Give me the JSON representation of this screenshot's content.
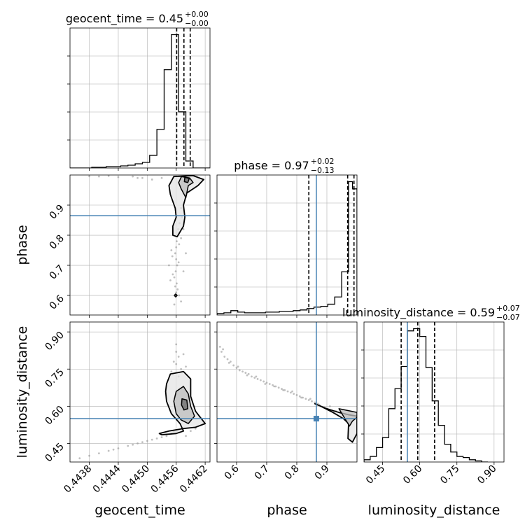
{
  "chart_data": {
    "type": "corner",
    "parameters": [
      "geocent_time",
      "phase",
      "luminosity_distance"
    ],
    "axis_labels": {
      "x": [
        "geocent_time",
        "phase",
        "luminosity_distance"
      ],
      "y": [
        "phase",
        "luminosity_distance"
      ]
    },
    "truths": {
      "phase": 0.865,
      "luminosity_distance": 0.55
    },
    "colors": {
      "truth": "#4682b4",
      "hist": "#000000",
      "points": "#8c8c8c",
      "grid": "#b0b0b0"
    },
    "diagonals": [
      {
        "param": "geocent_time",
        "title": {
          "prefix": "geocent_time = 0.45",
          "sup": "+0.00",
          "sub": "−0.00"
        },
        "xlim": [
          0.4434,
          0.4463
        ],
        "ticks": [
          0.4438,
          0.4444,
          0.445,
          0.4456,
          0.4462
        ],
        "tick_labels": [
          "0.4438",
          "0.4444",
          "0.4450",
          "0.4456",
          "0.4462"
        ],
        "bin_edges": [
          0.4434,
          0.44355,
          0.4437,
          0.44385,
          0.444,
          0.44415,
          0.4443,
          0.44445,
          0.4446,
          0.44475,
          0.4449,
          0.44505,
          0.4452,
          0.44535,
          0.4455,
          0.44565,
          0.4458,
          0.44595,
          0.4461,
          0.44625,
          0.4463
        ],
        "counts": [
          0,
          0,
          0,
          1,
          1,
          2,
          2,
          3,
          4,
          6,
          8,
          18,
          55,
          140,
          190,
          80,
          10,
          0,
          0,
          0
        ],
        "quantiles": [
          0.44561,
          0.44576,
          0.44589
        ]
      },
      {
        "param": "phase",
        "title": {
          "prefix": "phase = 0.97",
          "sup": "+0.02",
          "sub": "−0.13"
        },
        "xlim": [
          0.535,
          1.0
        ],
        "ticks": [
          0.6,
          0.7,
          0.8,
          0.9
        ],
        "tick_labels": [
          "0.6",
          "0.7",
          "0.8",
          "0.9"
        ],
        "bin_edges": [
          0.535,
          0.558,
          0.581,
          0.604,
          0.627,
          0.65,
          0.673,
          0.696,
          0.719,
          0.742,
          0.765,
          0.788,
          0.811,
          0.834,
          0.857,
          0.88,
          0.903,
          0.926,
          0.949,
          0.972,
          0.985,
          1.0
        ],
        "counts": [
          2,
          3,
          6,
          4,
          3,
          3,
          3,
          4,
          4,
          5,
          5,
          6,
          7,
          9,
          11,
          12,
          15,
          25,
          60,
          185,
          175
        ],
        "quantiles": [
          0.84,
          0.969,
          0.99
        ]
      },
      {
        "param": "luminosity_distance",
        "title": {
          "prefix": "luminosity_distance = 0.59",
          "sup": "+0.07",
          "sub": "−0.07"
        },
        "xlim": [
          0.375,
          0.94
        ],
        "ticks": [
          0.45,
          0.6,
          0.75,
          0.9
        ],
        "tick_labels": [
          "0.45",
          "0.60",
          "0.75",
          "0.90"
        ],
        "bin_edges": [
          0.375,
          0.4,
          0.425,
          0.45,
          0.475,
          0.5,
          0.525,
          0.55,
          0.575,
          0.6,
          0.625,
          0.65,
          0.675,
          0.7,
          0.725,
          0.75,
          0.775,
          0.8,
          0.825,
          0.85,
          0.875
        ],
        "counts": [
          2,
          5,
          13,
          22,
          48,
          66,
          86,
          118,
          120,
          113,
          85,
          55,
          33,
          16,
          9,
          5,
          4,
          2,
          1,
          0
        ],
        "quantiles": [
          0.525,
          0.592,
          0.66
        ]
      }
    ],
    "panels_2d": [
      {
        "x": "geocent_time",
        "y": "phase",
        "xlim": [
          0.4434,
          0.4463
        ],
        "ylim": [
          0.535,
          1.0
        ],
        "yticks": [
          0.6,
          0.7,
          0.8,
          0.9
        ],
        "ytick_labels": [
          "0.6",
          "0.7",
          "0.8",
          "0.9"
        ],
        "scatter": [
          [
            0.4457,
            0.89
          ],
          [
            0.44572,
            0.86
          ],
          [
            0.44567,
            0.84
          ],
          [
            0.44564,
            0.82
          ],
          [
            0.44561,
            0.8
          ],
          [
            0.44561,
            0.78
          ],
          [
            0.4456,
            0.76
          ],
          [
            0.44558,
            0.74
          ],
          [
            0.4456,
            0.72
          ],
          [
            0.44562,
            0.7
          ],
          [
            0.44559,
            0.68
          ],
          [
            0.44556,
            0.66
          ],
          [
            0.44561,
            0.64
          ],
          [
            0.44563,
            0.62
          ],
          [
            0.4456,
            0.61
          ],
          [
            0.44558,
            0.63
          ],
          [
            0.44553,
            0.67
          ],
          [
            0.44565,
            0.71
          ],
          [
            0.4455,
            0.75
          ],
          [
            0.4457,
            0.79
          ],
          [
            0.44548,
            0.65
          ],
          [
            0.44575,
            0.68
          ],
          [
            0.44552,
            0.73
          ],
          [
            0.44566,
            0.77
          ],
          [
            0.44566,
            0.6
          ],
          [
            0.4457,
            0.58
          ],
          [
            0.44556,
            0.57
          ],
          [
            0.44545,
            0.7
          ],
          [
            0.4458,
            0.74
          ],
          [
            0.44575,
            0.82
          ],
          [
            0.4448,
            0.99
          ],
          [
            0.4444,
            0.993
          ],
          [
            0.444,
            0.995
          ],
          [
            0.4451,
            0.985
          ],
          [
            0.4453,
            0.99
          ],
          [
            0.4447,
            0.995
          ],
          [
            0.4442,
            0.997
          ],
          [
            0.4449,
            0.99
          ],
          [
            0.4438,
            0.996
          ]
        ],
        "contours": [
          [
            [
              0.44555,
              0.995
            ],
            [
              0.44595,
              0.998
            ],
            [
              0.44617,
              0.985
            ],
            [
              0.44605,
              0.965
            ],
            [
              0.44582,
              0.94
            ],
            [
              0.44575,
              0.9
            ],
            [
              0.44578,
              0.86
            ],
            [
              0.44575,
              0.83
            ],
            [
              0.44562,
              0.795
            ],
            [
              0.44553,
              0.8
            ],
            [
              0.44553,
              0.83
            ],
            [
              0.4456,
              0.86
            ],
            [
              0.44558,
              0.89
            ],
            [
              0.44548,
              0.935
            ],
            [
              0.44545,
              0.965
            ],
            [
              0.44555,
              0.995
            ]
          ],
          [
            [
              0.44571,
              0.995
            ],
            [
              0.44588,
              0.99
            ],
            [
              0.44595,
              0.975
            ],
            [
              0.44585,
              0.965
            ],
            [
              0.4458,
              0.925
            ],
            [
              0.4457,
              0.955
            ],
            [
              0.44565,
              0.975
            ],
            [
              0.44571,
              0.995
            ]
          ],
          [
            [
              0.44578,
              0.993
            ],
            [
              0.44587,
              0.988
            ],
            [
              0.44584,
              0.975
            ],
            [
              0.44577,
              0.978
            ],
            [
              0.44578,
              0.993
            ]
          ],
          [
            [
              0.44556,
              0.6
            ],
            [
              0.44559,
              0.595
            ],
            [
              0.44562,
              0.6
            ],
            [
              0.44559,
              0.605
            ],
            [
              0.44556,
              0.6
            ]
          ]
        ]
      },
      {
        "x": "geocent_time",
        "y": "luminosity_distance",
        "xlim": [
          0.4434,
          0.4463
        ],
        "ylim": [
          0.375,
          0.94
        ],
        "yticks": [
          0.45,
          0.6,
          0.75,
          0.9
        ],
        "ytick_labels": [
          "0.45",
          "0.60",
          "0.75",
          "0.90"
        ],
        "scatter": [
          [
            0.4438,
            0.4
          ],
          [
            0.444,
            0.41
          ],
          [
            0.4442,
            0.42
          ],
          [
            0.4444,
            0.43
          ],
          [
            0.4446,
            0.44
          ],
          [
            0.4448,
            0.45
          ],
          [
            0.445,
            0.46
          ],
          [
            0.4451,
            0.465
          ],
          [
            0.4452,
            0.47
          ],
          [
            0.4453,
            0.475
          ],
          [
            0.4454,
            0.48
          ],
          [
            0.4455,
            0.49
          ],
          [
            0.44555,
            0.5
          ],
          [
            0.4456,
            0.82
          ],
          [
            0.44565,
            0.8
          ],
          [
            0.4456,
            0.77
          ],
          [
            0.4457,
            0.75
          ],
          [
            0.44555,
            0.78
          ],
          [
            0.44575,
            0.81
          ],
          [
            0.4455,
            0.74
          ],
          [
            0.4458,
            0.76
          ],
          [
            0.4456,
            0.85
          ],
          [
            0.44565,
            0.72
          ],
          [
            0.4458,
            0.48
          ],
          [
            0.4459,
            0.5
          ],
          [
            0.446,
            0.51
          ],
          [
            0.4436,
            0.39
          ],
          [
            0.4443,
            0.425
          ],
          [
            0.4447,
            0.445
          ],
          [
            0.4449,
            0.455
          ]
        ],
        "contours": [
          [
            [
              0.4454,
              0.69
            ],
            [
              0.44548,
              0.73
            ],
            [
              0.44575,
              0.74
            ],
            [
              0.4459,
              0.71
            ],
            [
              0.4459,
              0.64
            ],
            [
              0.446,
              0.58
            ],
            [
              0.44612,
              0.55
            ],
            [
              0.4462,
              0.53
            ],
            [
              0.446,
              0.515
            ],
            [
              0.44575,
              0.51
            ],
            [
              0.44545,
              0.5
            ],
            [
              0.44525,
              0.49
            ],
            [
              0.4453,
              0.485
            ],
            [
              0.4456,
              0.49
            ],
            [
              0.44575,
              0.5
            ],
            [
              0.44568,
              0.53
            ],
            [
              0.4455,
              0.57
            ],
            [
              0.4454,
              0.62
            ],
            [
              0.44538,
              0.66
            ],
            [
              0.4454,
              0.69
            ]
          ],
          [
            [
              0.4456,
              0.66
            ],
            [
              0.44575,
              0.68
            ],
            [
              0.44585,
              0.65
            ],
            [
              0.4459,
              0.6
            ],
            [
              0.44598,
              0.56
            ],
            [
              0.44585,
              0.53
            ],
            [
              0.4457,
              0.545
            ],
            [
              0.4456,
              0.57
            ],
            [
              0.44555,
              0.62
            ],
            [
              0.4456,
              0.66
            ]
          ],
          [
            [
              0.44572,
              0.63
            ],
            [
              0.44582,
              0.625
            ],
            [
              0.44584,
              0.59
            ],
            [
              0.44576,
              0.585
            ],
            [
              0.44571,
              0.605
            ],
            [
              0.44572,
              0.63
            ]
          ]
        ]
      },
      {
        "x": "phase",
        "y": "luminosity_distance",
        "xlim": [
          0.535,
          1.0
        ],
        "ylim": [
          0.375,
          0.94
        ],
        "scatter": [
          [
            0.545,
            0.84
          ],
          [
            0.55,
            0.82
          ],
          [
            0.56,
            0.8
          ],
          [
            0.57,
            0.79
          ],
          [
            0.58,
            0.78
          ],
          [
            0.59,
            0.765
          ],
          [
            0.6,
            0.755
          ],
          [
            0.61,
            0.745
          ],
          [
            0.62,
            0.74
          ],
          [
            0.63,
            0.735
          ],
          [
            0.64,
            0.73
          ],
          [
            0.65,
            0.72
          ],
          [
            0.66,
            0.715
          ],
          [
            0.67,
            0.71
          ],
          [
            0.68,
            0.705
          ],
          [
            0.69,
            0.7
          ],
          [
            0.7,
            0.695
          ],
          [
            0.71,
            0.69
          ],
          [
            0.72,
            0.685
          ],
          [
            0.73,
            0.68
          ],
          [
            0.74,
            0.675
          ],
          [
            0.75,
            0.67
          ],
          [
            0.76,
            0.665
          ],
          [
            0.77,
            0.66
          ],
          [
            0.78,
            0.655
          ],
          [
            0.79,
            0.65
          ],
          [
            0.8,
            0.645
          ],
          [
            0.81,
            0.64
          ],
          [
            0.82,
            0.635
          ],
          [
            0.83,
            0.63
          ],
          [
            0.84,
            0.625
          ],
          [
            0.85,
            0.62
          ],
          [
            0.86,
            0.615
          ],
          [
            0.87,
            0.61
          ],
          [
            0.88,
            0.6
          ],
          [
            0.89,
            0.595
          ],
          [
            0.9,
            0.59
          ],
          [
            0.555,
            0.83
          ],
          [
            0.575,
            0.775
          ],
          [
            0.605,
            0.76
          ],
          [
            0.635,
            0.725
          ],
          [
            0.665,
            0.72
          ],
          [
            0.695,
            0.69
          ],
          [
            0.725,
            0.68
          ],
          [
            0.755,
            0.665
          ],
          [
            0.785,
            0.66
          ],
          [
            0.815,
            0.635
          ],
          [
            0.845,
            0.63
          ],
          [
            0.875,
            0.605
          ],
          [
            0.905,
            0.585
          ],
          [
            0.91,
            0.6
          ],
          [
            0.93,
            0.58
          ]
        ],
        "contours": [
          [
            [
              0.86,
              0.61
            ],
            [
              0.9,
              0.59
            ],
            [
              0.94,
              0.575
            ],
            [
              0.975,
              0.565
            ],
            [
              1.0,
              0.56
            ],
            [
              1.0,
              0.49
            ],
            [
              0.985,
              0.455
            ],
            [
              0.97,
              0.47
            ],
            [
              0.972,
              0.53
            ],
            [
              0.955,
              0.55
            ],
            [
              0.92,
              0.575
            ],
            [
              0.88,
              0.6
            ],
            [
              0.86,
              0.61
            ]
          ],
          [
            [
              0.94,
              0.59
            ],
            [
              0.98,
              0.58
            ],
            [
              1.0,
              0.575
            ],
            [
              1.0,
              0.555
            ],
            [
              0.985,
              0.54
            ],
            [
              0.975,
              0.52
            ],
            [
              0.955,
              0.56
            ],
            [
              0.94,
              0.59
            ]
          ]
        ]
      }
    ]
  }
}
